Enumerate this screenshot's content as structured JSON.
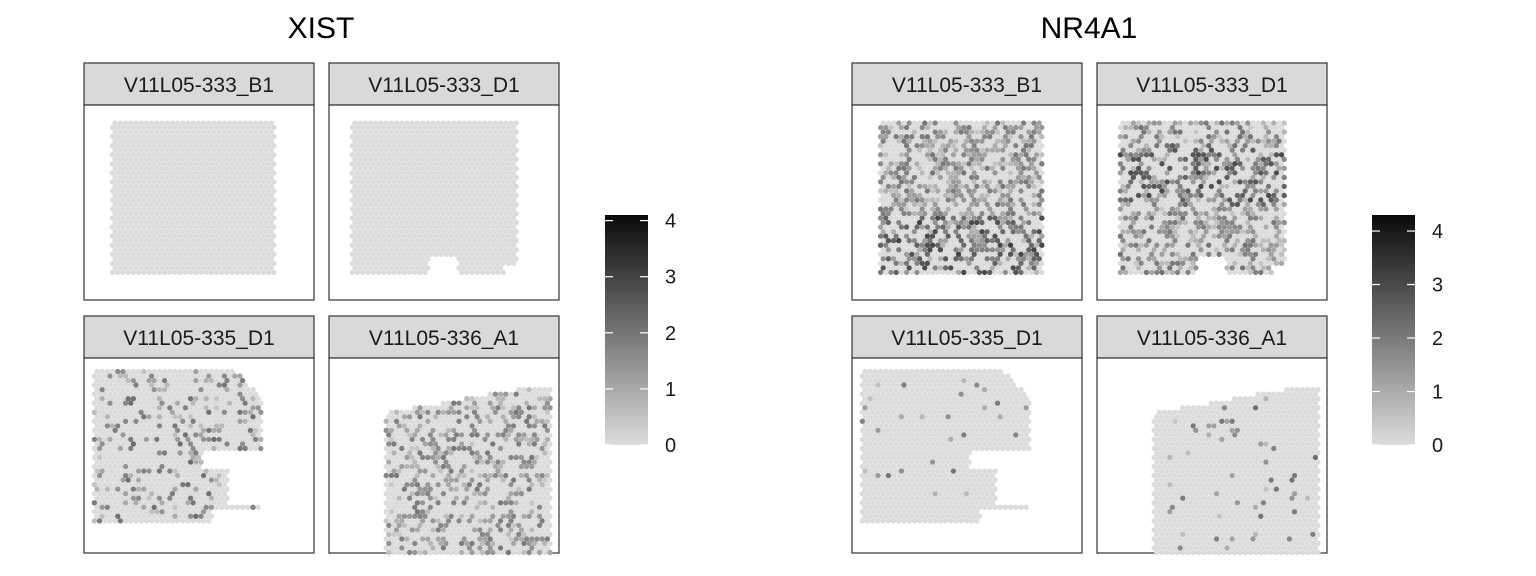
{
  "chart_data": [
    {
      "type": "heatmap",
      "title": "XIST",
      "facets": [
        "V11L05-333_B1",
        "V11L05-333_D1",
        "V11L05-335_D1",
        "V11L05-336_A1"
      ],
      "scale": {
        "ticks": [
          0,
          1,
          2,
          3,
          4
        ],
        "range": [
          0,
          4.1
        ],
        "low_color": "#dcdcdc",
        "high_color": "#0a0a0a"
      },
      "facet_expression": {
        "V11L05-333_B1": {
          "mean_level": 0.0,
          "nonzero_fraction": 0.0
        },
        "V11L05-333_D1": {
          "mean_level": 0.0,
          "nonzero_fraction": 0.0
        },
        "V11L05-335_D1": {
          "mean_level": 0.35,
          "nonzero_fraction": 0.22
        },
        "V11L05-336_A1": {
          "mean_level": 0.55,
          "nonzero_fraction": 0.38
        }
      }
    },
    {
      "type": "heatmap",
      "title": "NR4A1",
      "facets": [
        "V11L05-333_B1",
        "V11L05-333_D1",
        "V11L05-335_D1",
        "V11L05-336_A1"
      ],
      "scale": {
        "ticks": [
          0,
          1,
          2,
          3,
          4
        ],
        "range": [
          0,
          4.3
        ],
        "low_color": "#dcdcdc",
        "high_color": "#0a0a0a"
      },
      "facet_expression": {
        "V11L05-333_B1": {
          "mean_level": 0.85,
          "nonzero_fraction": 0.55
        },
        "V11L05-333_D1": {
          "mean_level": 0.8,
          "nonzero_fraction": 0.5
        },
        "V11L05-335_D1": {
          "mean_level": 0.05,
          "nonzero_fraction": 0.03
        },
        "V11L05-336_A1": {
          "mean_level": 0.1,
          "nonzero_fraction": 0.06
        }
      }
    }
  ]
}
